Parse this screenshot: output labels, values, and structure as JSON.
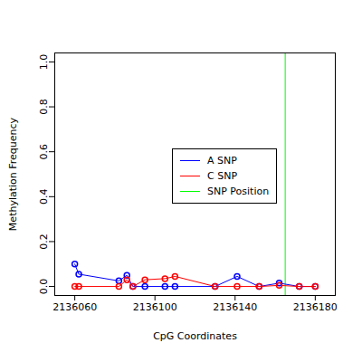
{
  "chart_data": {
    "type": "line",
    "x_label": "CpG Coordinates",
    "y_label": "Methylation Frequency",
    "marker": "circle",
    "legend": "right",
    "x": [
      2136060,
      2136062,
      2136082,
      2136086,
      2136089,
      2136095,
      2136105,
      2136110,
      2136130,
      2136141,
      2136152,
      2136162,
      2136172,
      2136180
    ],
    "series": [
      {
        "name": "A SNP",
        "color": "#0000ff",
        "values": [
          0.1,
          0.055,
          0.025,
          0.05,
          0.0,
          0.0,
          0.0,
          0.0,
          0.0,
          0.045,
          0.0,
          0.015,
          0.0,
          0.0
        ]
      },
      {
        "name": "C SNP",
        "color": "#ff0000",
        "values": [
          0.0,
          0.0,
          0.0,
          0.03,
          0.0,
          0.03,
          0.035,
          0.045,
          0.0,
          0.0,
          0.0,
          0.005,
          0.0,
          0.0
        ]
      }
    ],
    "snp_position": {
      "name": "SNP Position",
      "color": "#00ff00",
      "x": 2136165
    },
    "xlim": [
      2136050,
      2136190
    ],
    "xticks": [
      2136060,
      2136100,
      2136140,
      2136180
    ],
    "ylim": [
      -0.04,
      1.04
    ],
    "yticks": [
      {
        "value": 0,
        "label": "0.0"
      },
      {
        "value": 0.2,
        "label": "0.2"
      },
      {
        "value": 0.4,
        "label": "0.4"
      },
      {
        "value": 0.6,
        "label": "0.6"
      },
      {
        "value": 0.8,
        "label": "0.8"
      },
      {
        "value": 1,
        "label": "1.0"
      }
    ]
  }
}
